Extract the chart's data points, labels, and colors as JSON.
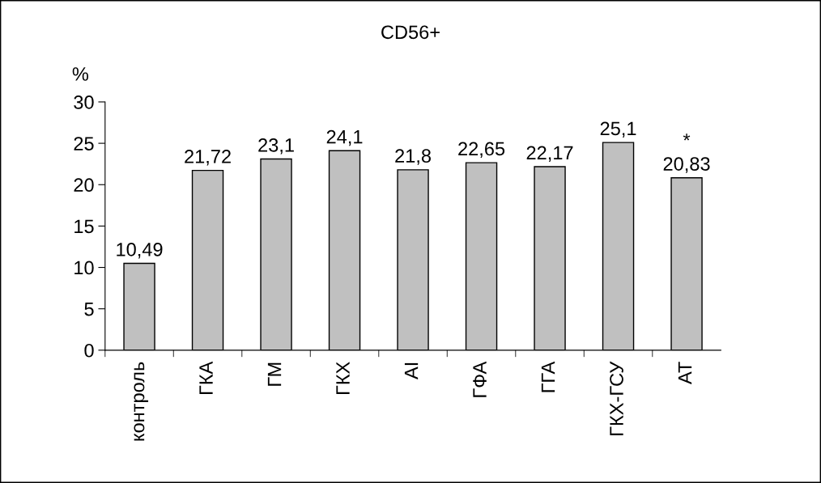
{
  "chart_data": {
    "type": "bar",
    "title": "CD56+",
    "ylabel": "%",
    "categories": [
      "контроль",
      "ГКА",
      "ГМ",
      "ГКХ",
      "АІ",
      "ГФА",
      "ГГА",
      "ГКХ-ГСУ",
      "АТ"
    ],
    "values": [
      10.49,
      21.72,
      23.1,
      24.1,
      21.8,
      22.65,
      22.17,
      25.1,
      20.83
    ],
    "value_labels": [
      "10,49",
      "21,72",
      "23,1",
      "24,1",
      "21,8",
      "22,65",
      "22,17",
      "25,1",
      "20,83"
    ],
    "color": "#c0c0c0",
    "ylim": [
      0,
      30
    ],
    "yticks": [
      0,
      5,
      10,
      15,
      20,
      25,
      30
    ],
    "grid": false,
    "legend": false,
    "annotations": [
      {
        "text": "*",
        "x": "АТ",
        "y": 20.83
      }
    ]
  }
}
